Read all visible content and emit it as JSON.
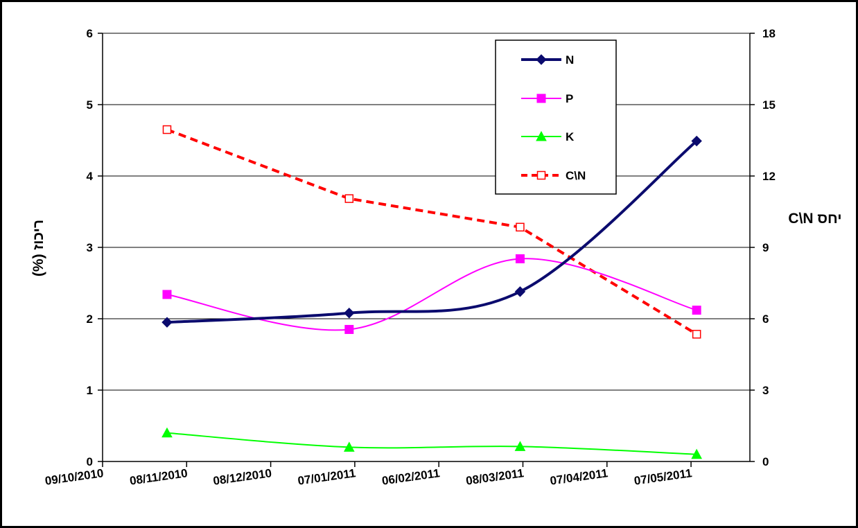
{
  "chart_data": {
    "type": "line",
    "x_axis": {
      "type": "date",
      "tick_labels": [
        "09/10/2010",
        "08/11/2010",
        "08/12/2010",
        "07/01/2011",
        "06/02/2011",
        "08/03/2011",
        "07/04/2011",
        "07/05/2011"
      ],
      "ticks": [
        "2010-10-09",
        "2010-11-08",
        "2010-12-08",
        "2011-01-07",
        "2011-02-06",
        "2011-03-08",
        "2011-04-07",
        "2011-05-07"
      ],
      "range": [
        "2010-10-09",
        "2011-05-28"
      ]
    },
    "y_left": {
      "label": "ריכוז (%)",
      "min": 0,
      "max": 6,
      "ticks": [
        0,
        1,
        2,
        3,
        4,
        5,
        6
      ]
    },
    "y_right": {
      "label": "יחס C\\N",
      "min": 0,
      "max": 18,
      "ticks": [
        0,
        3,
        6,
        9,
        12,
        15,
        18
      ]
    },
    "grid": "horizontal major lines",
    "legend_position": "top-right",
    "series": [
      {
        "name": "N",
        "axis": "left",
        "color": "#0b0b6e",
        "marker": "diamond",
        "line": "solid",
        "smooth": true,
        "points": [
          [
            "2010-11-01",
            1.95
          ],
          [
            "2011-01-05",
            2.08
          ],
          [
            "2011-03-07",
            2.38
          ],
          [
            "2011-05-09",
            4.49
          ]
        ]
      },
      {
        "name": "P",
        "axis": "left",
        "color": "#ff00ff",
        "marker": "square",
        "line": "solid",
        "smooth": true,
        "points": [
          [
            "2010-11-01",
            2.34
          ],
          [
            "2011-01-05",
            1.85
          ],
          [
            "2011-03-07",
            2.84
          ],
          [
            "2011-05-09",
            2.12
          ]
        ]
      },
      {
        "name": "K",
        "axis": "left",
        "color": "#00ff00",
        "marker": "triangle",
        "line": "solid",
        "smooth": true,
        "points": [
          [
            "2010-11-01",
            0.4
          ],
          [
            "2011-01-05",
            0.2
          ],
          [
            "2011-03-07",
            0.21
          ],
          [
            "2011-05-09",
            0.1
          ]
        ]
      },
      {
        "name": "C\\N",
        "axis": "right",
        "color": "#ff0000",
        "marker": "open-square",
        "line": "dashed",
        "smooth": false,
        "points": [
          [
            "2010-11-01",
            13.95
          ],
          [
            "2011-01-05",
            11.05
          ],
          [
            "2011-03-07",
            9.85
          ],
          [
            "2011-05-09",
            5.35
          ]
        ]
      }
    ]
  }
}
